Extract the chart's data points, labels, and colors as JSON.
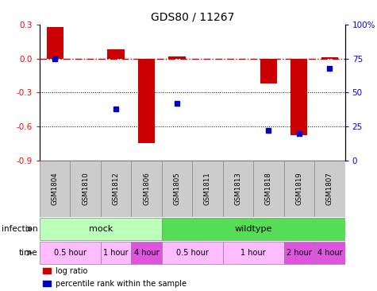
{
  "title": "GDS80 / 11267",
  "samples": [
    "GSM1804",
    "GSM1810",
    "GSM1812",
    "GSM1806",
    "GSM1805",
    "GSM1811",
    "GSM1813",
    "GSM1818",
    "GSM1819",
    "GSM1807"
  ],
  "log_ratio": [
    0.28,
    0.0,
    0.08,
    -0.75,
    0.02,
    0.0,
    0.0,
    -0.22,
    -0.68,
    0.01
  ],
  "percentile": [
    75,
    null,
    38,
    null,
    42,
    null,
    null,
    22,
    20,
    68
  ],
  "ylim_left": [
    -0.9,
    0.3
  ],
  "ylim_right": [
    0,
    100
  ],
  "yticks_left": [
    -0.9,
    -0.6,
    -0.3,
    0.0,
    0.3
  ],
  "yticks_right": [
    0,
    25,
    50,
    75,
    100
  ],
  "bar_color": "#cc0000",
  "dot_color": "#0000cc",
  "hline_color": "#cc0000",
  "dotted_color": "#000000",
  "infection_groups": [
    {
      "label": "mock",
      "start": 0,
      "end": 4,
      "color": "#bbffbb"
    },
    {
      "label": "wildtype",
      "start": 4,
      "end": 10,
      "color": "#55dd55"
    }
  ],
  "time_groups": [
    {
      "label": "0.5 hour",
      "start": 0,
      "end": 2,
      "color": "#ffbbff"
    },
    {
      "label": "1 hour",
      "start": 2,
      "end": 3,
      "color": "#ffbbff"
    },
    {
      "label": "4 hour",
      "start": 3,
      "end": 4,
      "color": "#dd55dd"
    },
    {
      "label": "0.5 hour",
      "start": 4,
      "end": 6,
      "color": "#ffbbff"
    },
    {
      "label": "1 hour",
      "start": 6,
      "end": 8,
      "color": "#ffbbff"
    },
    {
      "label": "2 hour",
      "start": 8,
      "end": 9,
      "color": "#dd55dd"
    },
    {
      "label": "4 hour",
      "start": 9,
      "end": 10,
      "color": "#dd55dd"
    }
  ],
  "legend_items": [
    {
      "label": "log ratio",
      "color": "#cc0000"
    },
    {
      "label": "percentile rank within the sample",
      "color": "#0000cc"
    }
  ],
  "background_color": "#ffffff",
  "sample_box_color": "#cccccc",
  "fig_width": 4.75,
  "fig_height": 3.66,
  "dpi": 100
}
